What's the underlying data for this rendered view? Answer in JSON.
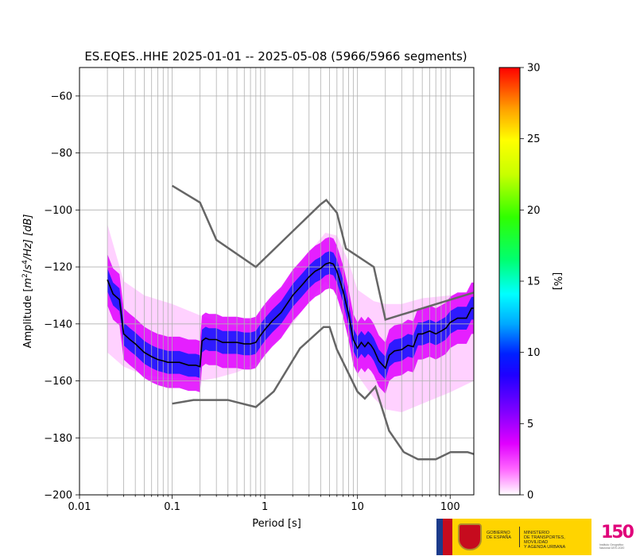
{
  "chart_data": {
    "type": "heatmap",
    "title": "ES.EQES..HHE   2025-01-01 -- 2025-05-08  (5966/5966 segments)",
    "xlabel": "Period [s]",
    "ylabel": "Amplitude [m²/s⁴/Hz] [dB]",
    "ylabel_parts": {
      "prefix": "Amplitude [",
      "m": "m",
      "sup1": "2",
      "slash1": "/",
      "s": "s",
      "sup2": "4",
      "tail": "/Hz] [dB]"
    },
    "x_scale": "log",
    "xlim": [
      0.01,
      180
    ],
    "ylim": [
      -200,
      -50
    ],
    "x_ticks": [
      0.01,
      0.1,
      1,
      10,
      100
    ],
    "x_tick_labels": [
      "0.01",
      "0.1",
      "1",
      "10",
      "100"
    ],
    "y_ticks": [
      -200,
      -180,
      -160,
      -140,
      -120,
      -100,
      -80,
      -60
    ],
    "y_tick_labels": [
      "−200",
      "−180",
      "−160",
      "−140",
      "−120",
      "−100",
      "−80",
      "−60"
    ],
    "grid": true,
    "colorbar": {
      "label": "[%]",
      "min": 0,
      "max": 30,
      "ticks": [
        0,
        5,
        10,
        15,
        20,
        25,
        30
      ],
      "tick_labels": [
        "0",
        "5",
        "10",
        "15",
        "20",
        "25",
        "30"
      ],
      "colormap": "pqlx"
    },
    "median_psd": {
      "x": [
        0.02,
        0.023,
        0.027,
        0.03,
        0.035,
        0.04,
        0.05,
        0.06,
        0.07,
        0.08,
        0.09,
        0.1,
        0.12,
        0.15,
        0.18,
        0.2,
        0.21,
        0.23,
        0.25,
        0.3,
        0.35,
        0.4,
        0.5,
        0.6,
        0.7,
        0.8,
        0.9,
        1.0,
        1.2,
        1.5,
        2.0,
        2.5,
        3.0,
        3.5,
        4.0,
        4.5,
        5.0,
        5.5,
        6.0,
        7.0,
        8.0,
        9.0,
        10,
        11,
        12,
        13,
        14,
        15,
        17,
        20,
        22,
        25,
        30,
        35,
        40,
        45,
        50,
        60,
        70,
        80,
        90,
        100,
        120,
        150,
        170,
        180
      ],
      "y": [
        -124.5,
        -129.5,
        -131.5,
        -143.5,
        -145.5,
        -147,
        -150,
        -151.5,
        -152.5,
        -153,
        -153.5,
        -153.5,
        -153.5,
        -154.5,
        -154.5,
        -155,
        -146,
        -145,
        -145.5,
        -145.5,
        -146.5,
        -146.5,
        -146.5,
        -147,
        -147,
        -146.5,
        -144,
        -142,
        -139,
        -136,
        -130,
        -126.5,
        -123.5,
        -121.5,
        -120.5,
        -119,
        -118.5,
        -119,
        -121.5,
        -128.5,
        -136.5,
        -145.5,
        -148.5,
        -146.5,
        -148,
        -146.5,
        -147.5,
        -149,
        -153,
        -155.5,
        -151,
        -149.5,
        -149,
        -147.5,
        -148,
        -143.5,
        -143.5,
        -142.5,
        -143.5,
        -142.5,
        -141.5,
        -139.5,
        -138,
        -138,
        -134.5,
        -134.5
      ]
    },
    "noise_models": [
      {
        "x": [
          0.1,
          0.2,
          0.3,
          0.8,
          4.0,
          4.6,
          6.0,
          7.5,
          15,
          20,
          180
        ],
        "y": [
          -91.5,
          -97.4,
          -110.5,
          -120.0,
          -98.0,
          -96.5,
          -101.0,
          -113.5,
          -120.0,
          -138.5,
          -129.0
        ]
      },
      {
        "x": [
          0.1,
          0.17,
          0.4,
          0.8,
          1.25,
          2.4,
          4.3,
          5.0,
          6.0,
          10,
          12,
          15.6,
          21.9,
          31.6,
          45,
          70,
          101,
          154,
          180
        ],
        "y": [
          -168.0,
          -166.7,
          -166.7,
          -169.2,
          -163.7,
          -148.6,
          -141.1,
          -141.1,
          -149.0,
          -163.8,
          -166.2,
          -162.1,
          -177.5,
          -185.0,
          -187.5,
          -187.5,
          -185.0,
          -185.0,
          -185.7
        ]
      }
    ],
    "density_band": {
      "x": [
        0.02,
        0.03,
        0.05,
        0.1,
        0.2,
        0.3,
        0.5,
        0.8,
        1.0,
        2.0,
        3.0,
        4.5,
        6.0,
        8.0,
        10,
        15,
        20,
        30,
        50,
        100,
        180
      ],
      "upper": [
        -105,
        -125,
        -130,
        -133,
        -137,
        -139,
        -141,
        -138,
        -134,
        -123,
        -115,
        -108,
        -109,
        -118,
        -128,
        -132,
        -133,
        -133,
        -131,
        -130,
        -128
      ],
      "lower": [
        -150,
        -155,
        -158,
        -159,
        -160,
        -159,
        -157,
        -154,
        -150,
        -140,
        -132,
        -125,
        -130,
        -145,
        -158,
        -166,
        -170,
        -171,
        -168,
        -164,
        -160
      ]
    }
  }
}
